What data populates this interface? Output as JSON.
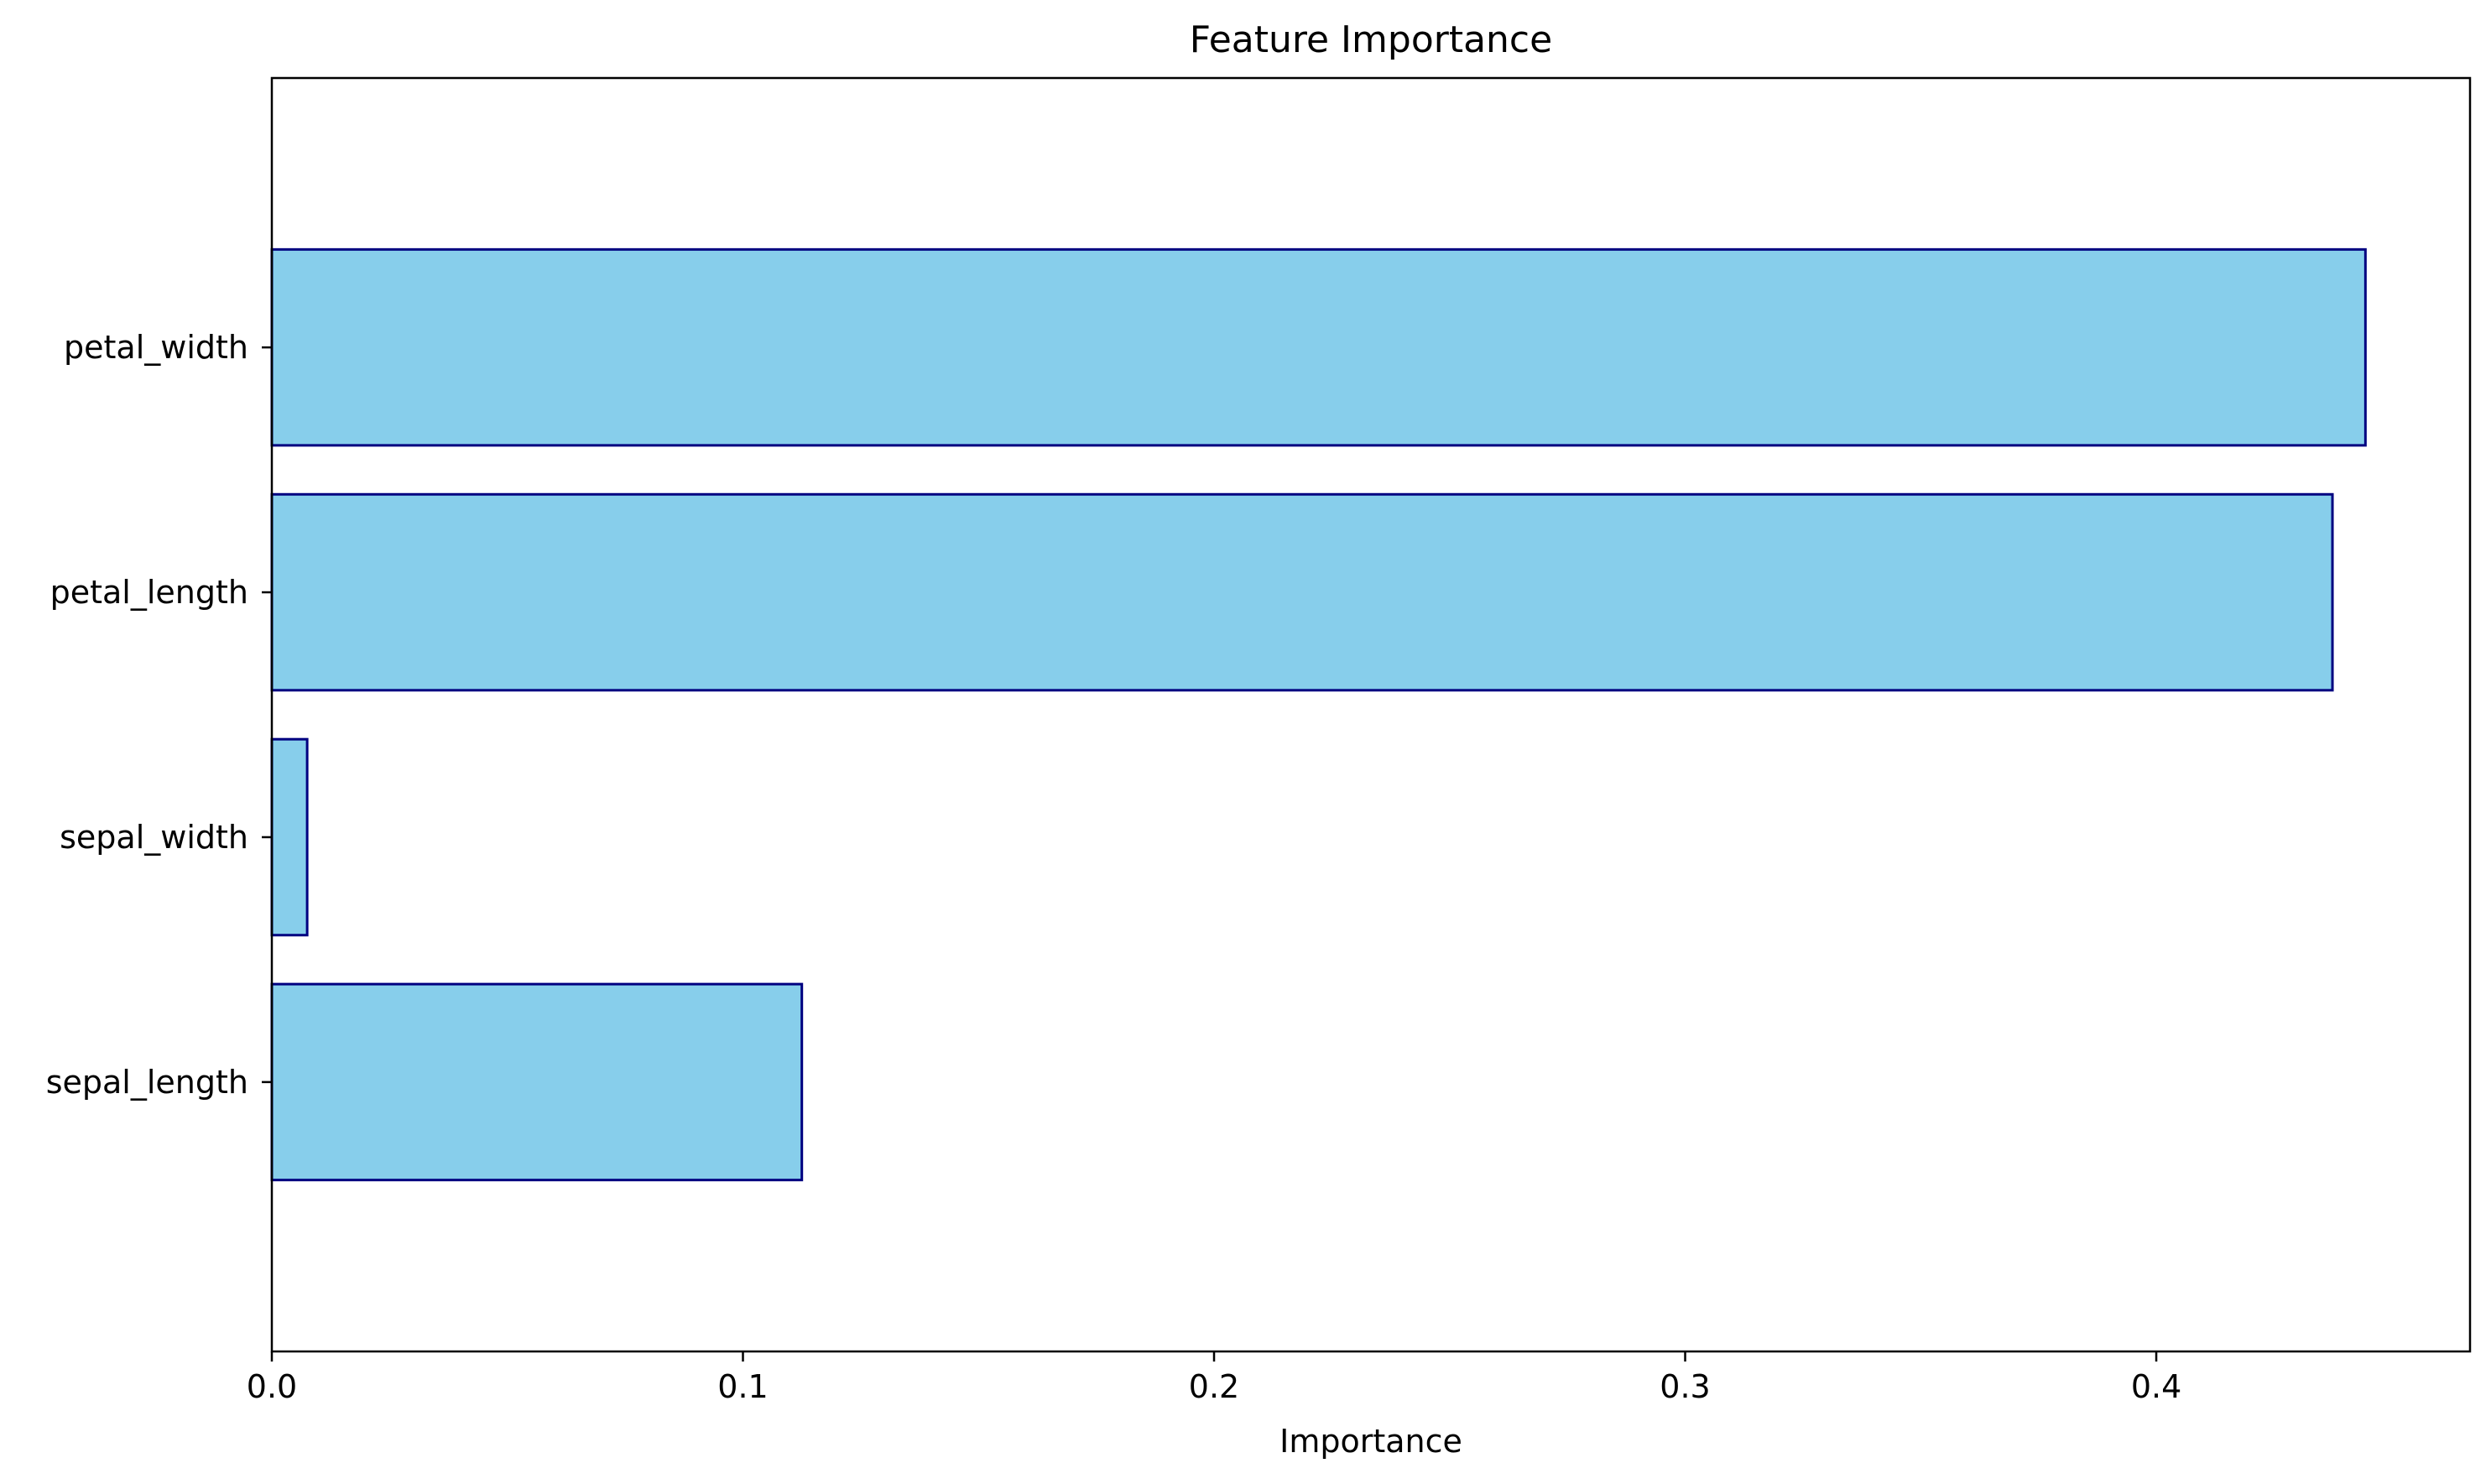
{
  "chart_data": {
    "type": "bar",
    "orientation": "horizontal",
    "title": "Feature Importance",
    "xlabel": "Importance",
    "ylabel": "",
    "categories": [
      "sepal_length",
      "sepal_width",
      "petal_length",
      "petal_width"
    ],
    "values": [
      0.1125,
      0.0075,
      0.4374,
      0.4444
    ],
    "xlim": [
      0,
      0.4666
    ],
    "xticks": [
      "0.0",
      "0.1",
      "0.2",
      "0.3",
      "0.4"
    ],
    "grid": false,
    "legend": "none",
    "colors": {
      "bar_fill": "#87CEEB",
      "bar_edge": "#000080",
      "axes": "#000000"
    }
  }
}
